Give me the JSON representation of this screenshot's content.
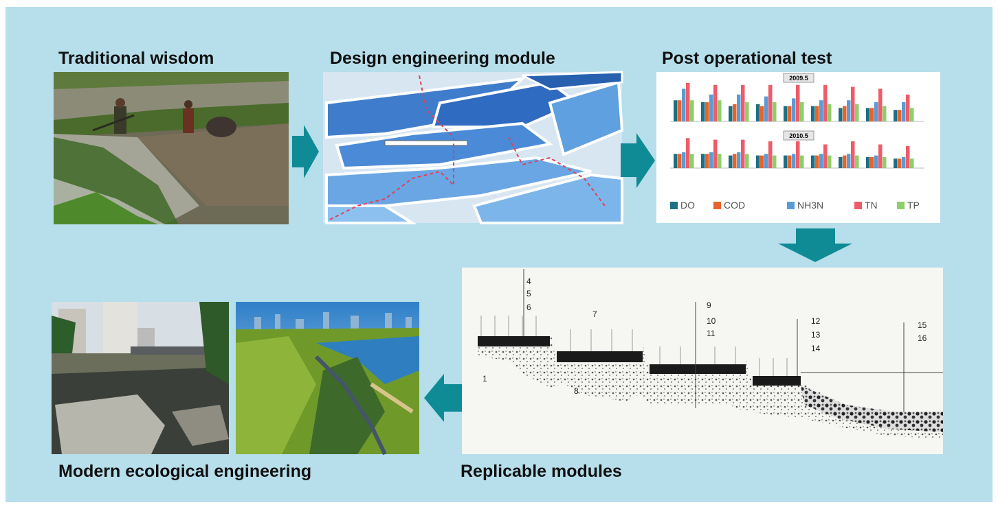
{
  "panels": {
    "traditional": {
      "title": "Traditional wisdom"
    },
    "design": {
      "title": "Design engineering module"
    },
    "post_test": {
      "title": "Post operational test",
      "series": [
        {
          "name": "DO",
          "color": "#1d6f82"
        },
        {
          "name": "COD",
          "color": "#e8632b"
        },
        {
          "name": "NH3N",
          "color": "#5b9bd5"
        },
        {
          "name": "TN",
          "color": "#ef5b68"
        },
        {
          "name": "TP",
          "color": "#8fcf6a"
        }
      ],
      "charts": [
        {
          "title": "2009.5",
          "series_values": [
            [
              5.5,
              5,
              4,
              4.5,
              4,
              4,
              3.5,
              3.5,
              3
            ],
            [
              5.5,
              5,
              4.5,
              4,
              4,
              4,
              4,
              3.5,
              3
            ],
            [
              8.5,
              7,
              7,
              6.5,
              6,
              5.5,
              5.5,
              5,
              5
            ],
            [
              10,
              9.5,
              9.5,
              9.5,
              9.5,
              9.5,
              9,
              8.5,
              7
            ],
            [
              5.5,
              5.5,
              5,
              5,
              5,
              4.5,
              4.5,
              4,
              3.5
            ]
          ]
        },
        {
          "title": "2010.5",
          "series_values": [
            [
              4.5,
              4.5,
              4,
              4,
              4,
              4,
              3.5,
              3.5,
              3
            ],
            [
              4.5,
              4.5,
              4.5,
              4,
              4,
              4,
              4,
              3.5,
              3
            ],
            [
              5,
              5,
              5,
              4.5,
              4.5,
              4.5,
              4.5,
              4,
              3.5
            ],
            [
              9.5,
              9,
              9,
              8.5,
              8.5,
              7.5,
              8.5,
              7.5,
              7
            ],
            [
              4.5,
              4.5,
              4.5,
              4,
              4,
              4,
              4,
              3.5,
              3
            ]
          ]
        }
      ]
    },
    "replicable": {
      "title": "Replicable modules",
      "callouts": [
        "4",
        "5",
        "6",
        "7",
        "9",
        "10",
        "11",
        "12",
        "13",
        "14",
        "15",
        "16",
        "1",
        "8"
      ]
    },
    "modern": {
      "title": "Modern ecological engineering"
    }
  }
}
